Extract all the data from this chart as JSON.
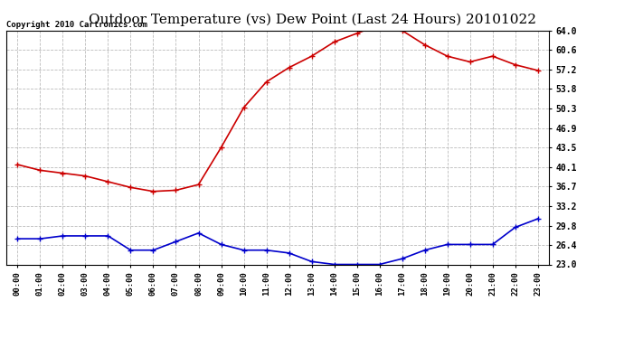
{
  "title": "Outdoor Temperature (vs) Dew Point (Last 24 Hours) 20101022",
  "copyright": "Copyright 2010 Cartronics.com",
  "hours": [
    "00:00",
    "01:00",
    "02:00",
    "03:00",
    "04:00",
    "05:00",
    "06:00",
    "07:00",
    "08:00",
    "09:00",
    "10:00",
    "11:00",
    "12:00",
    "13:00",
    "14:00",
    "15:00",
    "16:00",
    "17:00",
    "18:00",
    "19:00",
    "20:00",
    "21:00",
    "22:00",
    "23:00"
  ],
  "temp": [
    40.5,
    39.5,
    39.0,
    38.5,
    37.5,
    36.5,
    35.8,
    36.0,
    37.0,
    43.5,
    50.5,
    55.0,
    57.5,
    59.5,
    62.0,
    63.5,
    65.0,
    64.0,
    61.5,
    59.5,
    58.5,
    59.5,
    58.0,
    57.0
  ],
  "dew": [
    27.5,
    27.5,
    28.0,
    28.0,
    28.0,
    25.5,
    25.5,
    27.0,
    28.5,
    26.5,
    25.5,
    25.5,
    25.0,
    23.5,
    23.0,
    23.0,
    23.0,
    24.0,
    25.5,
    26.5,
    26.5,
    26.5,
    29.5,
    31.0
  ],
  "temp_color": "#cc0000",
  "dew_color": "#0000cc",
  "bg_color": "#ffffff",
  "grid_color": "#bbbbbb",
  "ylim": [
    23.0,
    64.0
  ],
  "yticks": [
    23.0,
    26.4,
    29.8,
    33.2,
    36.7,
    40.1,
    43.5,
    46.9,
    50.3,
    53.8,
    57.2,
    60.6,
    64.0
  ],
  "title_fontsize": 11,
  "copyright_fontsize": 6.5,
  "marker": "+",
  "marker_size": 5,
  "line_width": 1.2
}
